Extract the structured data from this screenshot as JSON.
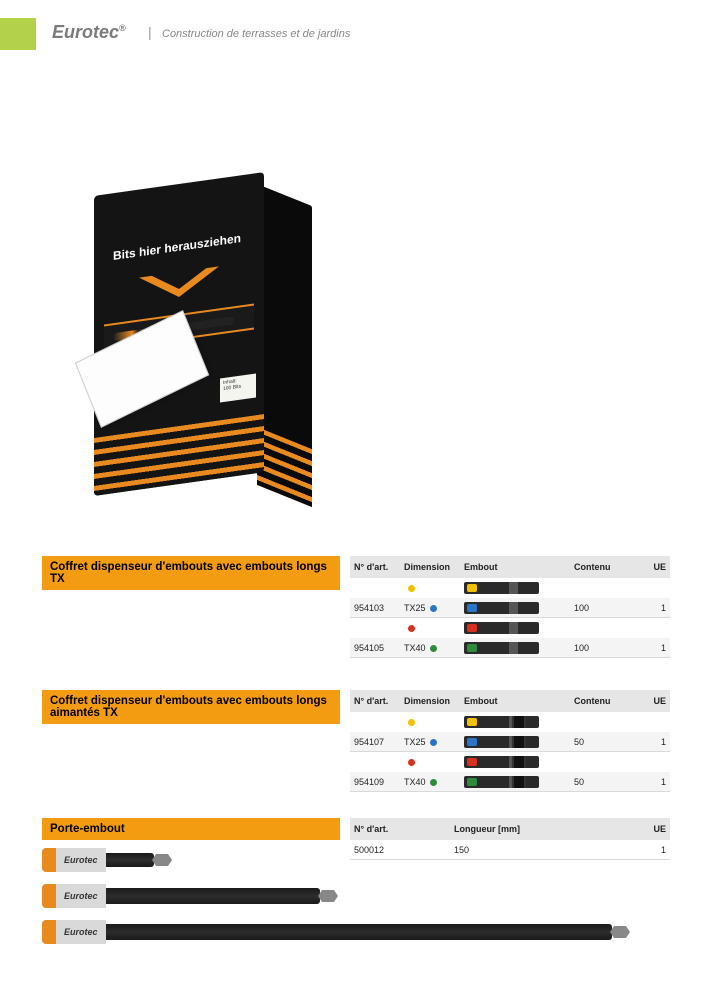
{
  "header": {
    "brand": "Eurotec",
    "brand_reg": "®",
    "subtitle": "Construction de terrasses et de jardins"
  },
  "box": {
    "pull_text": "Bits hier herausziehen",
    "sticker_line1": "Inhalt:",
    "sticker_line2": "100 Bits"
  },
  "section1": {
    "title": "Coffret dispenseur d'embouts avec embouts longs TX",
    "headers": {
      "art": "N° d'art.",
      "dim": "Dimension",
      "emb": "Embout",
      "cont": "Contenu",
      "ue": "UE"
    },
    "rows": [
      {
        "art": "",
        "dim": "",
        "dot": "#f2c200",
        "bit": "yellow",
        "cont": "",
        "ue": ""
      },
      {
        "art": "954103",
        "dim": "TX25",
        "dot": "#2c74c9",
        "bit": "blue",
        "cont": "100",
        "ue": "1"
      },
      {
        "art": "",
        "dim": "",
        "dot": "#d7301f",
        "bit": "red",
        "cont": "",
        "ue": ""
      },
      {
        "art": "954105",
        "dim": "TX40",
        "dot": "#2e8b3d",
        "bit": "green",
        "cont": "100",
        "ue": "1"
      }
    ]
  },
  "section2": {
    "title": "Coffret dispenseur d'embouts avec embouts longs aimantés TX",
    "headers": {
      "art": "N° d'art.",
      "dim": "Dimension",
      "emb": "Embout",
      "cont": "Contenu",
      "ue": "UE"
    },
    "rows": [
      {
        "art": "",
        "dim": "",
        "dot": "#f2c200",
        "bit": "yellow",
        "cont": "",
        "ue": ""
      },
      {
        "art": "954107",
        "dim": "TX25",
        "dot": "#2c74c9",
        "bit": "blue",
        "cont": "50",
        "ue": "1"
      },
      {
        "art": "",
        "dim": "",
        "dot": "#d7301f",
        "bit": "red",
        "cont": "",
        "ue": ""
      },
      {
        "art": "954109",
        "dim": "TX40",
        "dot": "#2e8b3d",
        "bit": "green",
        "cont": "50",
        "ue": "1"
      }
    ]
  },
  "section3": {
    "title": "Porte-embout",
    "headers": {
      "art": "N° d'art.",
      "len": "Longueur [mm]",
      "ue": "UE"
    },
    "rows": [
      {
        "art": "500012",
        "len": "150",
        "ue": "1"
      }
    ]
  },
  "holders_brand": "Eurotec",
  "colors": {
    "accent_orange": "#f39c12",
    "box_orange": "#e88a1f",
    "tab_green": "#b3d24b",
    "grey_header": "#e6e6e6"
  }
}
